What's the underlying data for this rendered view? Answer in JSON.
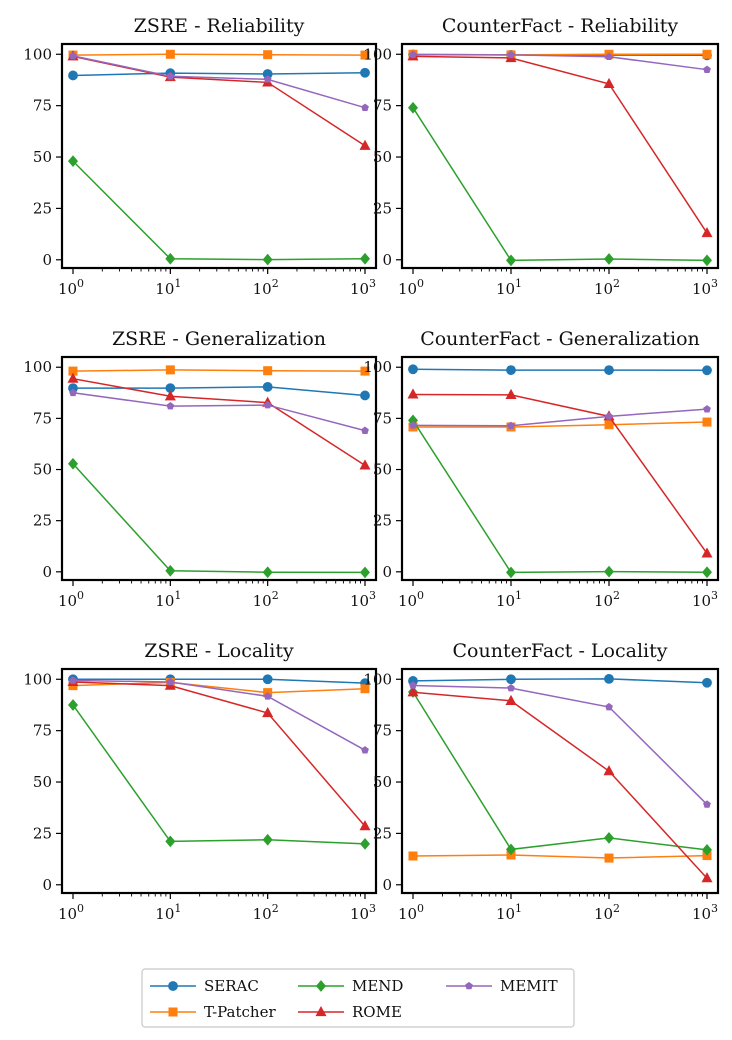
{
  "chart_data": [
    {
      "type": "line",
      "title": "ZSRE - Reliability",
      "xscale": "log",
      "x": [
        1,
        10,
        100,
        1000
      ],
      "x_tick_labels": [
        [
          "10",
          "0"
        ],
        [
          "10",
          "1"
        ],
        [
          "10",
          "2"
        ],
        [
          "10",
          "3"
        ]
      ],
      "y_ticks": [
        0,
        25,
        50,
        75,
        100
      ],
      "ylim": [
        -4,
        105
      ],
      "series": [
        {
          "name": "SERAC",
          "values": [
            89.7,
            90.8,
            90.4,
            91.0
          ]
        },
        {
          "name": "T-Patcher",
          "values": [
            99.6,
            100.0,
            99.8,
            99.6
          ]
        },
        {
          "name": "MEND",
          "values": [
            48.0,
            0.5,
            0.1,
            0.5
          ]
        },
        {
          "name": "ROME",
          "values": [
            99.0,
            88.9,
            86.3,
            55.5
          ]
        },
        {
          "name": "MEMIT",
          "values": [
            99.2,
            89.3,
            87.8,
            74.0
          ]
        }
      ]
    },
    {
      "type": "line",
      "title": "CounterFact - Reliability",
      "xscale": "log",
      "x": [
        1,
        10,
        100,
        1000
      ],
      "x_tick_labels": [
        [
          "10",
          "0"
        ],
        [
          "10",
          "1"
        ],
        [
          "10",
          "2"
        ],
        [
          "10",
          "3"
        ]
      ],
      "y_ticks": [
        0,
        25,
        50,
        75,
        100
      ],
      "ylim": [
        -4,
        105
      ],
      "series": [
        {
          "name": "SERAC",
          "values": [
            99.9,
            99.7,
            99.6,
            99.5
          ]
        },
        {
          "name": "T-Patcher",
          "values": [
            100.0,
            99.7,
            100.0,
            100.0
          ]
        },
        {
          "name": "MEND",
          "values": [
            74.0,
            -0.3,
            0.4,
            -0.3
          ]
        },
        {
          "name": "ROME",
          "values": [
            99.0,
            98.2,
            85.6,
            13.0
          ]
        },
        {
          "name": "MEMIT",
          "values": [
            99.8,
            99.7,
            98.8,
            92.5
          ]
        }
      ]
    },
    {
      "type": "line",
      "title": "ZSRE - Generalization",
      "xscale": "log",
      "x": [
        1,
        10,
        100,
        1000
      ],
      "x_tick_labels": [
        [
          "10",
          "0"
        ],
        [
          "10",
          "1"
        ],
        [
          "10",
          "2"
        ],
        [
          "10",
          "3"
        ]
      ],
      "y_ticks": [
        0,
        25,
        50,
        75,
        100
      ],
      "ylim": [
        -4,
        105
      ],
      "series": [
        {
          "name": "SERAC",
          "values": [
            89.8,
            89.8,
            90.4,
            86.2
          ]
        },
        {
          "name": "T-Patcher",
          "values": [
            98.1,
            98.7,
            98.3,
            98.1
          ]
        },
        {
          "name": "MEND",
          "values": [
            52.8,
            0.5,
            -0.2,
            -0.3
          ]
        },
        {
          "name": "ROME",
          "values": [
            94.4,
            85.8,
            82.7,
            52.0
          ]
        },
        {
          "name": "MEMIT",
          "values": [
            87.5,
            81.0,
            81.5,
            69.0
          ]
        }
      ]
    },
    {
      "type": "line",
      "title": "CounterFact - Generalization",
      "xscale": "log",
      "x": [
        1,
        10,
        100,
        1000
      ],
      "x_tick_labels": [
        [
          "10",
          "0"
        ],
        [
          "10",
          "1"
        ],
        [
          "10",
          "2"
        ],
        [
          "10",
          "3"
        ]
      ],
      "y_ticks": [
        0,
        25,
        50,
        75,
        100
      ],
      "ylim": [
        -4,
        105
      ],
      "series": [
        {
          "name": "SERAC",
          "values": [
            99.0,
            98.6,
            98.6,
            98.5
          ]
        },
        {
          "name": "T-Patcher",
          "values": [
            70.8,
            70.8,
            71.9,
            73.2
          ]
        },
        {
          "name": "MEND",
          "values": [
            74.0,
            -0.3,
            0.1,
            -0.2
          ]
        },
        {
          "name": "ROME",
          "values": [
            86.7,
            86.5,
            76.0,
            9.0
          ]
        },
        {
          "name": "MEMIT",
          "values": [
            71.6,
            71.4,
            76.0,
            79.5
          ]
        }
      ]
    },
    {
      "type": "line",
      "title": "ZSRE - Locality",
      "xscale": "log",
      "x": [
        1,
        10,
        100,
        1000
      ],
      "x_tick_labels": [
        [
          "10",
          "0"
        ],
        [
          "10",
          "1"
        ],
        [
          "10",
          "2"
        ],
        [
          "10",
          "3"
        ]
      ],
      "y_ticks": [
        0,
        25,
        50,
        75,
        100
      ],
      "ylim": [
        -4,
        105
      ],
      "series": [
        {
          "name": "SERAC",
          "values": [
            100.0,
            100.0,
            100.0,
            98.1
          ]
        },
        {
          "name": "T-Patcher",
          "values": [
            96.9,
            98.5,
            93.5,
            95.4
          ]
        },
        {
          "name": "MEND",
          "values": [
            87.5,
            21.1,
            21.9,
            19.9
          ]
        },
        {
          "name": "ROME",
          "values": [
            98.7,
            96.9,
            83.6,
            28.5
          ]
        },
        {
          "name": "MEMIT",
          "values": [
            99.4,
            98.7,
            91.7,
            65.5
          ]
        }
      ]
    },
    {
      "type": "line",
      "title": "CounterFact - Locality",
      "xscale": "log",
      "x": [
        1,
        10,
        100,
        1000
      ],
      "x_tick_labels": [
        [
          "10",
          "0"
        ],
        [
          "10",
          "1"
        ],
        [
          "10",
          "2"
        ],
        [
          "10",
          "3"
        ]
      ],
      "y_ticks": [
        0,
        25,
        50,
        75,
        100
      ],
      "ylim": [
        -4,
        105
      ],
      "series": [
        {
          "name": "SERAC",
          "values": [
            99.2,
            100.0,
            100.2,
            98.3
          ]
        },
        {
          "name": "T-Patcher",
          "values": [
            14.0,
            14.5,
            13.0,
            14.2
          ]
        },
        {
          "name": "MEND",
          "values": [
            93.8,
            17.2,
            22.8,
            17.0
          ]
        },
        {
          "name": "ROME",
          "values": [
            93.7,
            89.5,
            55.3,
            3.2
          ]
        },
        {
          "name": "MEMIT",
          "values": [
            97.0,
            95.7,
            86.5,
            39.1
          ]
        }
      ]
    }
  ],
  "legend": {
    "placement": "bottom-center",
    "entries": [
      {
        "name": "SERAC",
        "color": "#1f77b4",
        "marker": "circle"
      },
      {
        "name": "T-Patcher",
        "color": "#ff7f0e",
        "marker": "square"
      },
      {
        "name": "MEND",
        "color": "#2ca02c",
        "marker": "diamond"
      },
      {
        "name": "ROME",
        "color": "#d62728",
        "marker": "triangle"
      },
      {
        "name": "MEMIT",
        "color": "#9467bd",
        "marker": "pentagon"
      }
    ]
  }
}
